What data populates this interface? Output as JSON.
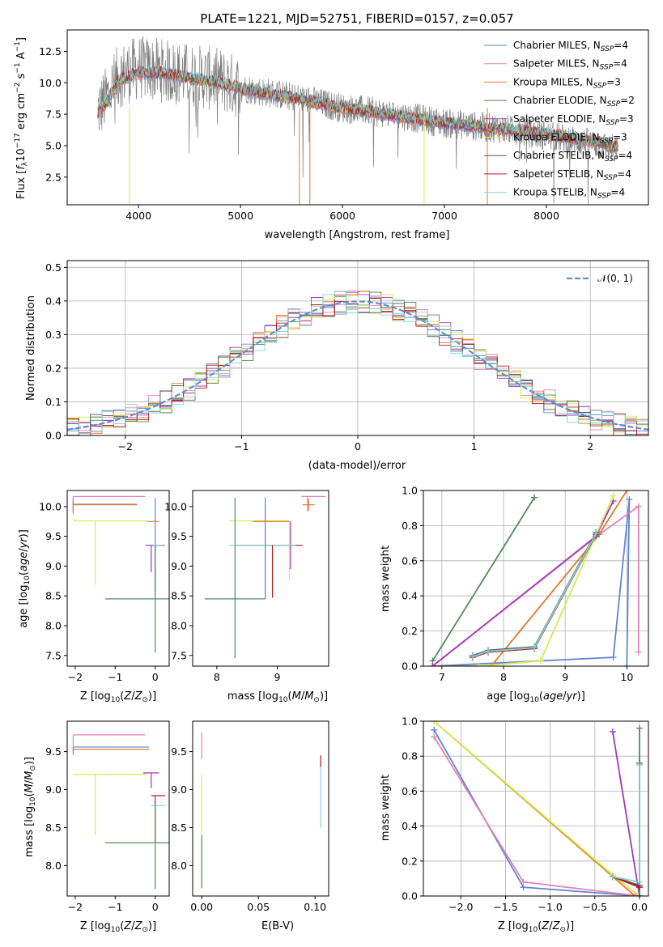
{
  "chart_data": [
    {
      "id": "spectrum",
      "type": "line",
      "title": "PLATE=1221, MJD=52751, FIBERID=0157, z=0.057",
      "xlabel": "wavelength [Angstrom, rest frame]",
      "ylabel": "Flux [fλ10⁻¹⁷ erg cm⁻² s⁻¹ A⁻¹]",
      "xlim": [
        3300,
        9000
      ],
      "ylim": [
        0.3,
        14.2
      ],
      "xticks": [
        4000,
        5000,
        6000,
        7000,
        8000
      ],
      "xtick_labels": [
        "4000",
        "5000",
        "6000",
        "7000",
        "8000"
      ],
      "yticks": [
        2.5,
        5.0,
        7.5,
        10.0,
        12.5
      ],
      "ytick_labels": [
        "2.5",
        "5.0",
        "7.5",
        "10.0",
        "12.5"
      ],
      "legend_position": "top-right",
      "data_color": "#808080",
      "data_approx": {
        "x": [
          3600,
          3700,
          3800,
          4000,
          4200,
          4500,
          4800,
          5000,
          5500,
          6000,
          6500,
          7000,
          7500,
          8000,
          8500,
          8700
        ],
        "y": [
          7.8,
          9.0,
          10.5,
          11.2,
          11.0,
          10.6,
          10.2,
          9.6,
          8.9,
          8.0,
          7.5,
          6.8,
          6.4,
          5.8,
          5.1,
          4.6
        ]
      },
      "series": [
        {
          "name": "Chabrier MILES, N$_{SSP}$=4",
          "color": "#5f86d4"
        },
        {
          "name": "Salpeter MILES, N$_{SSP}$=4",
          "color": "#e482b8"
        },
        {
          "name": "Kroupa MILES, N$_{SSP}$=3",
          "color": "#e0782d"
        },
        {
          "name": "Chabrier ELODIE, N$_{SSP}$=2",
          "color": "#4f8a5b"
        },
        {
          "name": "Salpeter ELODIE, N$_{SSP}$=3",
          "color": "#a238b8"
        },
        {
          "name": "Kroupa ELODIE, N$_{SSP}$=3",
          "color": "#d4ec4c"
        },
        {
          "name": "Chabrier STELIB, N$_{SSP}$=4",
          "color": "#555555"
        },
        {
          "name": "Salpeter STELIB, N$_{SSP}$=4",
          "color": "#b81c1c"
        },
        {
          "name": "Kroupa STELIB, N$_{SSP}$=4",
          "color": "#7fd4d8"
        }
      ],
      "model_approx": {
        "x": [
          3600,
          3700,
          3800,
          4000,
          4200,
          4500,
          4800,
          5000,
          5500,
          6000,
          6500,
          7000,
          7500,
          8000,
          8500,
          8700
        ],
        "y": [
          7.6,
          8.6,
          10.2,
          10.8,
          10.8,
          10.4,
          10.0,
          9.5,
          8.8,
          8.0,
          7.4,
          6.8,
          6.4,
          5.9,
          5.3,
          4.9
        ]
      }
    },
    {
      "id": "residuals",
      "type": "line",
      "xlabel": "(data-model)/error",
      "ylabel": "Normed distribution",
      "xlim": [
        -2.5,
        2.5
      ],
      "ylim": [
        0.0,
        0.52
      ],
      "xticks": [
        -2,
        -1,
        0,
        1,
        2
      ],
      "xtick_labels": [
        "−2",
        "−1",
        "0",
        "1",
        "2"
      ],
      "yticks": [
        0.0,
        0.1,
        0.2,
        0.3,
        0.4,
        0.5
      ],
      "ytick_labels": [
        "0.0",
        "0.1",
        "0.2",
        "0.3",
        "0.4",
        "0.5"
      ],
      "grid": true,
      "legend_position": "top-right",
      "gaussian": {
        "name": "𝒩(0, 1)",
        "color": "#5f8fd4"
      },
      "histogram_bin_width": 0.1
    },
    {
      "id": "age-vs-Z",
      "type": "scatter",
      "xlabel": "Z [log₁₀(Z/Z⊙)]",
      "ylabel": "age  [log₁₀(age/yr)]",
      "xlim": [
        -2.2,
        0.35
      ],
      "ylim": [
        7.32,
        10.27
      ],
      "xticks": [
        -2,
        -1,
        0
      ],
      "xtick_labels": [
        "−2",
        "−1",
        "0"
      ],
      "yticks": [
        7.5,
        8.0,
        8.5,
        9.0,
        9.5,
        10.0
      ],
      "ytick_labels": [
        "7.5",
        "8.0",
        "8.5",
        "9.0",
        "9.5",
        "10.0"
      ],
      "points": [
        {
          "x": -2.05,
          "xerr": [
            0.0,
            1.6
          ],
          "y": 10.04,
          "yerr": [
            0.1,
            0.1
          ],
          "color": "#5f86d4"
        },
        {
          "x": -2.05,
          "xerr": [
            0.0,
            1.8
          ],
          "y": 10.17,
          "yerr": [
            0.25,
            0.0
          ],
          "color": "#e482b8"
        },
        {
          "x": -2.05,
          "xerr": [
            0.0,
            1.6
          ],
          "y": 10.03,
          "yerr": [
            0.15,
            0.1
          ],
          "color": "#e0782d"
        },
        {
          "x": -1.5,
          "xerr": [
            0.55,
            1.3
          ],
          "y": 9.76,
          "yerr": [
            1.07,
            0.0
          ],
          "color": "#d4ec4c"
        },
        {
          "x": -0.3,
          "xerr": [
            0.0,
            0.0
          ],
          "y": 10.02,
          "yerr": [
            0.0,
            0.0
          ],
          "color": "#a238b8"
        },
        {
          "x": -0.2,
          "xerr": [
            0.0,
            0.3
          ],
          "y": 9.75,
          "yerr": [
            0.0,
            0.0
          ],
          "color": "#e0782d"
        },
        {
          "x": -0.1,
          "xerr": [
            0.15,
            0.2
          ],
          "y": 9.35,
          "yerr": [
            0.45,
            0.0
          ],
          "color": "#a238b8"
        },
        {
          "x": -0.05,
          "xerr": [
            1.2,
            1.55
          ],
          "y": 8.45,
          "yerr": [
            0.0,
            0.0
          ],
          "color": "#4f8a5b"
        },
        {
          "x": 0.0,
          "xerr": [
            0.1,
            0.25
          ],
          "y": 9.35,
          "yerr": [
            0.8,
            0.8
          ],
          "color": "#5f86d4"
        },
        {
          "x": 0.0,
          "xerr": [
            0.0,
            0.0
          ],
          "y": 9.35,
          "yerr": [
            1.8,
            0.0
          ],
          "color": "#4f8a5b"
        },
        {
          "x": 0.0,
          "xerr": [
            0.05,
            0.2
          ],
          "y": 9.35,
          "yerr": [
            0.0,
            0.0
          ],
          "color": "#b81c1c"
        },
        {
          "x": 0.0,
          "xerr": [
            0.05,
            0.2
          ],
          "y": 9.35,
          "yerr": [
            0.0,
            0.0
          ],
          "color": "#7fd4d8"
        }
      ]
    },
    {
      "id": "age-vs-mass",
      "type": "scatter",
      "xlabel": "mass [log₁₀(M/M⊙)]",
      "ylabel": "",
      "xlim": [
        7.6,
        9.85
      ],
      "ylim": [
        7.32,
        10.27
      ],
      "xticks": [
        8,
        9
      ],
      "xtick_labels": [
        "8",
        "9"
      ],
      "yticks": [
        7.5,
        8.0,
        8.5,
        9.0,
        9.5,
        10.0
      ],
      "ytick_labels": [
        "7.5",
        "8.0",
        "8.5",
        "9.0",
        "9.5",
        "10.0"
      ],
      "points": [
        {
          "x": 9.5,
          "xerr": [
            0.1,
            0.3
          ],
          "y": 10.17,
          "yerr": [
            0.25,
            0.0
          ],
          "color": "#e482b8"
        },
        {
          "x": 9.52,
          "xerr": [
            0.1,
            0.1
          ],
          "y": 10.03,
          "yerr": [
            0.1,
            0.1
          ],
          "color": "#e0782d"
        },
        {
          "x": 9.2,
          "xerr": [
            1.0,
            0.0
          ],
          "y": 9.76,
          "yerr": [
            0.0,
            0.0
          ],
          "color": "#d4ec4c"
        },
        {
          "x": 9.2,
          "xerr": [
            0.0,
            0.0
          ],
          "y": 9.76,
          "yerr": [
            1.0,
            0.0
          ],
          "color": "#d4ec4c"
        },
        {
          "x": 8.9,
          "xerr": [
            0.3,
            0.3
          ],
          "y": 9.75,
          "yerr": [
            0.0,
            0.0
          ],
          "color": "#e0782d"
        },
        {
          "x": 9.22,
          "xerr": [
            0.0,
            0.0
          ],
          "y": 9.75,
          "yerr": [
            0.8,
            0.0
          ],
          "color": "#a238b8"
        },
        {
          "x": 8.92,
          "xerr": [
            0.6,
            0.5
          ],
          "y": 9.35,
          "yerr": [
            0.0,
            0.0
          ],
          "color": "#b81c1c"
        },
        {
          "x": 8.8,
          "xerr": [
            0.6,
            0.5
          ],
          "y": 9.35,
          "yerr": [
            0.88,
            0.8
          ],
          "color": "#7fd4d8"
        },
        {
          "x": 8.92,
          "xerr": [
            0.0,
            0.0
          ],
          "y": 9.35,
          "yerr": [
            0.88,
            0.0
          ],
          "color": "#b81c1c"
        },
        {
          "x": 8.3,
          "xerr": [
            0.5,
            0.5
          ],
          "y": 8.45,
          "yerr": [
            1.0,
            1.7
          ],
          "color": "#4f8a5b"
        },
        {
          "x": 8.8,
          "xerr": [
            0.0,
            0.0
          ],
          "y": 9.35,
          "yerr": [
            0.9,
            0.8
          ],
          "color": "#5f86d4"
        }
      ]
    },
    {
      "id": "weight-vs-age",
      "type": "line",
      "xlabel": "age  [log₁₀(age/yr)]",
      "ylabel": "mass weight",
      "xlim": [
        6.7,
        10.35
      ],
      "ylim": [
        0.0,
        1.0
      ],
      "xticks": [
        7,
        8,
        9,
        10
      ],
      "xtick_labels": [
        "7",
        "8",
        "9",
        "10"
      ],
      "yticks": [
        0.0,
        0.2,
        0.4,
        0.6,
        0.8,
        1.0
      ],
      "ytick_labels": [
        "0.0",
        "0.2",
        "0.4",
        "0.6",
        "0.8",
        "1.0"
      ],
      "grid": true,
      "series": [
        {
          "color": "#5f86d4",
          "x": [
            6.85,
            9.78,
            10.04,
            10.0
          ],
          "y": [
            0.0,
            0.05,
            0.95,
            0.0
          ]
        },
        {
          "color": "#e482b8",
          "x": [
            6.85,
            9.55,
            10.19,
            10.19
          ],
          "y": [
            0.0,
            0.75,
            0.91,
            0.08
          ]
        },
        {
          "color": "#e0782d",
          "x": [
            6.85,
            7.8,
            9.55,
            10.0
          ],
          "y": [
            0.0,
            0.0,
            0.75,
            1.0
          ]
        },
        {
          "color": "#4f8a5b",
          "x": [
            6.85,
            8.5
          ],
          "y": [
            0.03,
            0.96
          ]
        },
        {
          "color": "#a238b8",
          "x": [
            6.85,
            9.5,
            9.78
          ],
          "y": [
            0.0,
            0.74,
            0.94
          ]
        },
        {
          "color": "#d4ec4c",
          "x": [
            7.6,
            8.6,
            9.78
          ],
          "y": [
            0.0,
            0.03,
            0.97
          ]
        },
        {
          "color": "#555555",
          "x": [
            7.5,
            7.75,
            8.5,
            9.5
          ],
          "y": [
            0.06,
            0.09,
            0.11,
            0.76
          ]
        },
        {
          "color": "#b81c1c",
          "x": [
            7.5,
            7.75,
            8.5,
            9.5
          ],
          "y": [
            0.05,
            0.08,
            0.1,
            0.75
          ]
        },
        {
          "color": "#7fd4d8",
          "x": [
            7.5,
            7.75,
            8.5,
            9.5
          ],
          "y": [
            0.055,
            0.085,
            0.105,
            0.755
          ]
        }
      ]
    },
    {
      "id": "mass-vs-Z",
      "type": "scatter",
      "xlabel": "Z [log₁₀(Z/Z⊙)]",
      "ylabel": "mass [log₁₀(M/M⊙)]",
      "xlim": [
        -2.2,
        0.35
      ],
      "ylim": [
        7.6,
        9.9
      ],
      "xticks": [
        -2,
        -1,
        0
      ],
      "xtick_labels": [
        "−2",
        "−1",
        "0"
      ],
      "yticks": [
        8.0,
        8.5,
        9.0,
        9.5
      ],
      "ytick_labels": [
        "8.0",
        "8.5",
        "9.0",
        "9.5"
      ],
      "points": [
        {
          "x": -2.05,
          "xerr": [
            0.0,
            1.8
          ],
          "y": 9.72,
          "yerr": [
            0.2,
            0.0
          ],
          "color": "#e482b8"
        },
        {
          "x": -2.05,
          "xerr": [
            0.0,
            1.9
          ],
          "y": 9.56,
          "yerr": [
            0.1,
            0.0
          ],
          "color": "#5f86d4"
        },
        {
          "x": -2.05,
          "xerr": [
            0.0,
            1.9
          ],
          "y": 9.53,
          "yerr": [
            0.0,
            0.0
          ],
          "color": "#e0782d"
        },
        {
          "x": -1.5,
          "xerr": [
            0.55,
            1.3
          ],
          "y": 9.2,
          "yerr": [
            0.8,
            0.0
          ],
          "color": "#d4ec4c"
        },
        {
          "x": -0.1,
          "xerr": [
            0.2,
            0.2
          ],
          "y": 9.22,
          "yerr": [
            0.2,
            0.0
          ],
          "color": "#a238b8"
        },
        {
          "x": 0.0,
          "xerr": [
            0.1,
            0.25
          ],
          "y": 8.92,
          "yerr": [
            0.6,
            0.0
          ],
          "color": "#b81c1c"
        },
        {
          "x": 0.0,
          "xerr": [
            0.1,
            0.25
          ],
          "y": 8.79,
          "yerr": [
            0.0,
            0.0
          ],
          "color": "#7fd4d8"
        },
        {
          "x": -0.05,
          "xerr": [
            1.2,
            1.55
          ],
          "y": 8.3,
          "yerr": [
            0.0,
            0.0
          ],
          "color": "#4f8a5b"
        },
        {
          "x": 0.0,
          "xerr": [
            0.0,
            0.0
          ],
          "y": 8.79,
          "yerr": [
            1.1,
            0.0
          ],
          "color": "#4f8a5b"
        }
      ]
    },
    {
      "id": "mass-vs-ebv",
      "type": "scatter",
      "xlabel": "E(B-V)",
      "ylabel": "",
      "xlim": [
        -0.008,
        0.112
      ],
      "ylim": [
        7.6,
        9.9
      ],
      "xticks": [
        0.0,
        0.05,
        0.1
      ],
      "xtick_labels": [
        "0.00",
        "0.05",
        "0.10"
      ],
      "yticks": [
        8.0,
        8.5,
        9.0,
        9.5
      ],
      "ytick_labels": [
        "8.0",
        "8.5",
        "9.0",
        "9.5"
      ],
      "points": [
        {
          "x": 0.0,
          "xerr": [
            0.0,
            0.0
          ],
          "y": 9.5,
          "yerr": [
            0.1,
            0.25
          ],
          "color": "#e482b8"
        },
        {
          "x": 0.0,
          "xerr": [
            0.0,
            0.0
          ],
          "y": 9.2,
          "yerr": [
            0.8,
            0.0
          ],
          "color": "#d4ec4c"
        },
        {
          "x": 0.0,
          "xerr": [
            0.0,
            0.0
          ],
          "y": 8.3,
          "yerr": [
            0.6,
            0.1
          ],
          "color": "#4f8a5b"
        },
        {
          "x": 0.105,
          "xerr": [
            0.0,
            0.0
          ],
          "y": 9.0,
          "yerr": [
            0.5,
            0.45
          ],
          "color": "#7fd4d8"
        },
        {
          "x": 0.105,
          "xerr": [
            0.0,
            0.0
          ],
          "y": 9.3,
          "yerr": [
            0.0,
            0.15
          ],
          "color": "#b81c1c"
        }
      ]
    },
    {
      "id": "weight-vs-Z",
      "type": "line",
      "xlabel": "Z [log₁₀(Z/Z⊙)]",
      "ylabel": "mass weight",
      "xlim": [
        -2.42,
        0.1
      ],
      "ylim": [
        0.0,
        1.0
      ],
      "xticks": [
        -2.0,
        -1.5,
        -1.0,
        -0.5,
        0.0
      ],
      "xtick_labels": [
        "−2.0",
        "−1.5",
        "−1.0",
        "−0.5",
        "0.0"
      ],
      "yticks": [
        0.0,
        0.2,
        0.4,
        0.6,
        0.8,
        1.0
      ],
      "ytick_labels": [
        "0.0",
        "0.2",
        "0.4",
        "0.6",
        "0.8",
        "1.0"
      ],
      "grid": true,
      "series": [
        {
          "color": "#5f86d4",
          "x": [
            -2.3,
            -1.3,
            0.0,
            0.0
          ],
          "y": [
            0.95,
            0.05,
            0.0,
            0.0
          ]
        },
        {
          "color": "#e482b8",
          "x": [
            -2.3,
            -1.3,
            0.0
          ],
          "y": [
            0.91,
            0.08,
            0.0
          ]
        },
        {
          "color": "#e0782d",
          "x": [
            -2.3,
            -0.05,
            0.0
          ],
          "y": [
            1.0,
            0.0,
            0.0
          ]
        },
        {
          "color": "#d4ec4c",
          "x": [
            -2.3,
            -0.3,
            0.0
          ],
          "y": [
            1.0,
            0.12,
            0.0
          ]
        },
        {
          "color": "#a238b8",
          "x": [
            -0.3,
            0.0
          ],
          "y": [
            0.94,
            0.0
          ]
        },
        {
          "color": "#4f8a5b",
          "x": [
            0.0,
            0.0
          ],
          "y": [
            0.96,
            0.0
          ]
        },
        {
          "color": "#555555",
          "x": [
            -0.3,
            0.0,
            0.0
          ],
          "y": [
            0.11,
            0.06,
            0.76
          ]
        },
        {
          "color": "#b81c1c",
          "x": [
            -0.3,
            0.0,
            0.0
          ],
          "y": [
            0.11,
            0.05,
            0.75
          ]
        },
        {
          "color": "#7fd4d8",
          "x": [
            -0.3,
            0.0,
            0.0
          ],
          "y": [
            0.11,
            0.08,
            0.75
          ]
        }
      ]
    }
  ]
}
